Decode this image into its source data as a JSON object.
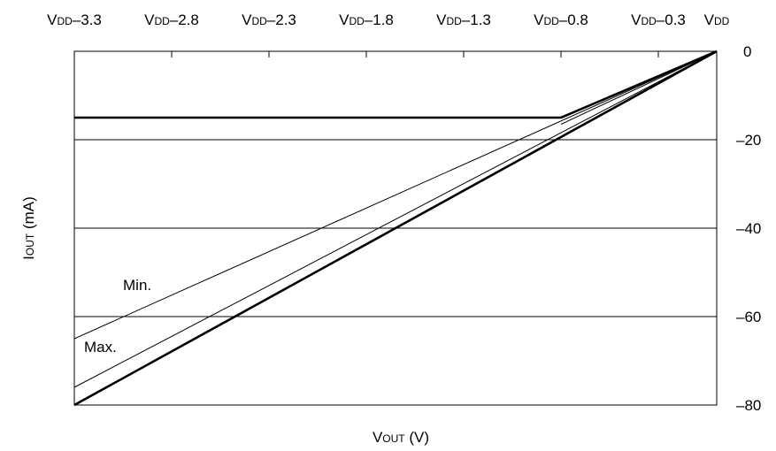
{
  "chart_data": {
    "type": "line",
    "title": "",
    "xlabel": {
      "main": "V",
      "sub": "OUT",
      "unit": " (V)"
    },
    "ylabel": {
      "main": "I",
      "sub": "OUT",
      "unit": " (mA)"
    },
    "x_tick_labels": [
      {
        "main": "V",
        "sub": "DD",
        "suffix": "–3.3"
      },
      {
        "main": "V",
        "sub": "DD",
        "suffix": "–2.8"
      },
      {
        "main": "V",
        "sub": "DD",
        "suffix": "–2.3"
      },
      {
        "main": "V",
        "sub": "DD",
        "suffix": "–1.8"
      },
      {
        "main": "V",
        "sub": "DD",
        "suffix": "–1.3"
      },
      {
        "main": "V",
        "sub": "DD",
        "suffix": "–0.8"
      },
      {
        "main": "V",
        "sub": "DD",
        "suffix": "–0.3"
      },
      {
        "main": "V",
        "sub": "DD",
        "suffix": ""
      }
    ],
    "x_ticks": [
      -3.3,
      -2.8,
      -2.3,
      -1.8,
      -1.3,
      -0.8,
      -0.3,
      0
    ],
    "xlim": [
      -3.3,
      0
    ],
    "y_ticks": [
      0,
      -20,
      -40,
      -60,
      -80
    ],
    "y_tick_labels": [
      "0",
      "–20",
      "–40",
      "–60",
      "–80"
    ],
    "ylim": [
      -80,
      0
    ],
    "grid": "horizontal",
    "series": [
      {
        "name": "Min.",
        "x": [
          -3.3,
          0
        ],
        "y": [
          -65,
          0
        ],
        "bold": false
      },
      {
        "name": "Max.",
        "x": [
          -3.3,
          0
        ],
        "y": [
          -76,
          0
        ],
        "bold": false
      },
      {
        "name": "",
        "x": [
          -3.3,
          0
        ],
        "y": [
          -80,
          0
        ],
        "bold": true
      },
      {
        "name": "",
        "x": [
          -3.3,
          -0.8,
          0
        ],
        "y": [
          -15,
          -15,
          0
        ],
        "bold": true
      },
      {
        "name": "",
        "x": [
          -0.8,
          0
        ],
        "y": [
          -16.5,
          0
        ],
        "bold": false
      }
    ],
    "annotations": [
      {
        "text": "Min.",
        "x": -3.05,
        "y": -54
      },
      {
        "text": "Max.",
        "x": -3.25,
        "y": -68
      }
    ]
  }
}
